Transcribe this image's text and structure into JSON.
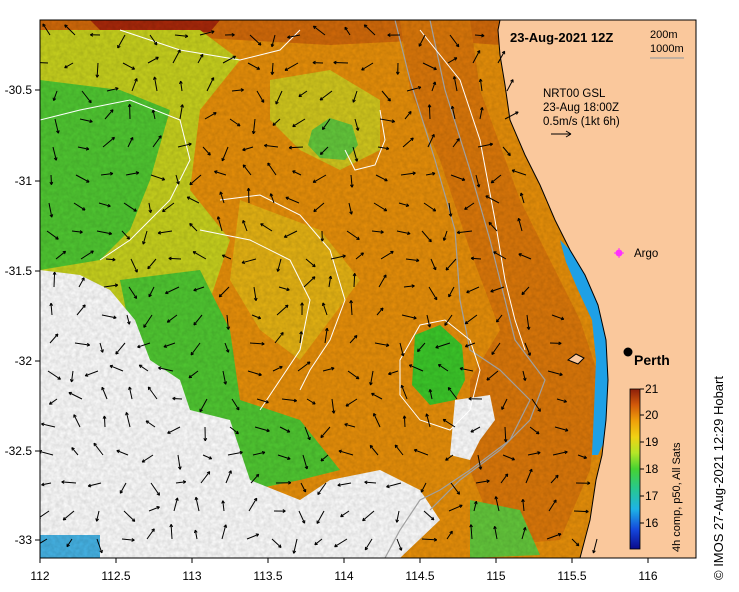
{
  "map": {
    "date_title": "23-Aug-2021 12Z",
    "contour_legend": [
      "200m",
      "1000m"
    ],
    "current_legend": {
      "source": "NRT00 GSL",
      "time": "23-Aug 18:00Z",
      "scale": "0.5m/s (1kt 6h)"
    },
    "argo_label": "Argo",
    "city_label": "Perth",
    "x_ticks": [
      "112",
      "112.5",
      "113",
      "113.5",
      "114",
      "114.5",
      "115",
      "115.5",
      "116"
    ],
    "y_ticks": [
      "-30.5",
      "-31",
      "-31.5",
      "-32",
      "-32.5",
      "-33"
    ],
    "colorbar": {
      "ticks": [
        "21",
        "20",
        "19",
        "18",
        "17",
        "16"
      ],
      "caption": "4h comp, p50, All Sats"
    },
    "credit": "© IMOS 27-Aug-2021 12:29 Hobart",
    "colors": {
      "land": "#fac89c",
      "coast_blue": "#1ea0e6",
      "warm_orange": "#e8900a",
      "green": "#3cc82a",
      "argo_marker": "#ff30ff"
    }
  }
}
